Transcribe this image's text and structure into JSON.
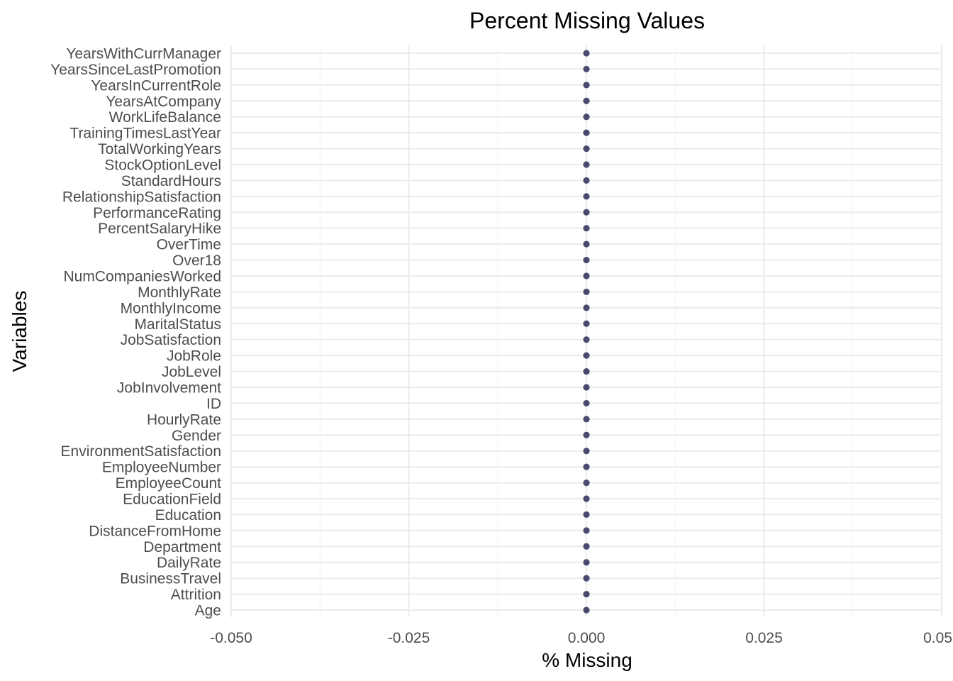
{
  "chart_data": {
    "type": "scatter",
    "title": "Percent Missing Values",
    "xlabel": "% Missing",
    "ylabel": "Variables",
    "xlim": [
      -0.05,
      0.05
    ],
    "x_ticks": [
      -0.05,
      -0.025,
      0.0,
      0.025,
      0.05
    ],
    "x_tick_labels": [
      "-0.050",
      "-0.025",
      "0.000",
      "0.025",
      "0.05"
    ],
    "grid": true,
    "point_color": "#4a4a70",
    "categories": [
      "YearsWithCurrManager",
      "YearsSinceLastPromotion",
      "YearsInCurrentRole",
      "YearsAtCompany",
      "WorkLifeBalance",
      "TrainingTimesLastYear",
      "TotalWorkingYears",
      "StockOptionLevel",
      "StandardHours",
      "RelationshipSatisfaction",
      "PerformanceRating",
      "PercentSalaryHike",
      "OverTime",
      "Over18",
      "NumCompaniesWorked",
      "MonthlyRate",
      "MonthlyIncome",
      "MaritalStatus",
      "JobSatisfaction",
      "JobRole",
      "JobLevel",
      "JobInvolvement",
      "ID",
      "HourlyRate",
      "Gender",
      "EnvironmentSatisfaction",
      "EmployeeNumber",
      "EmployeeCount",
      "EducationField",
      "Education",
      "DistanceFromHome",
      "Department",
      "DailyRate",
      "BusinessTravel",
      "Attrition",
      "Age"
    ],
    "values": [
      0,
      0,
      0,
      0,
      0,
      0,
      0,
      0,
      0,
      0,
      0,
      0,
      0,
      0,
      0,
      0,
      0,
      0,
      0,
      0,
      0,
      0,
      0,
      0,
      0,
      0,
      0,
      0,
      0,
      0,
      0,
      0,
      0,
      0,
      0,
      0
    ]
  }
}
